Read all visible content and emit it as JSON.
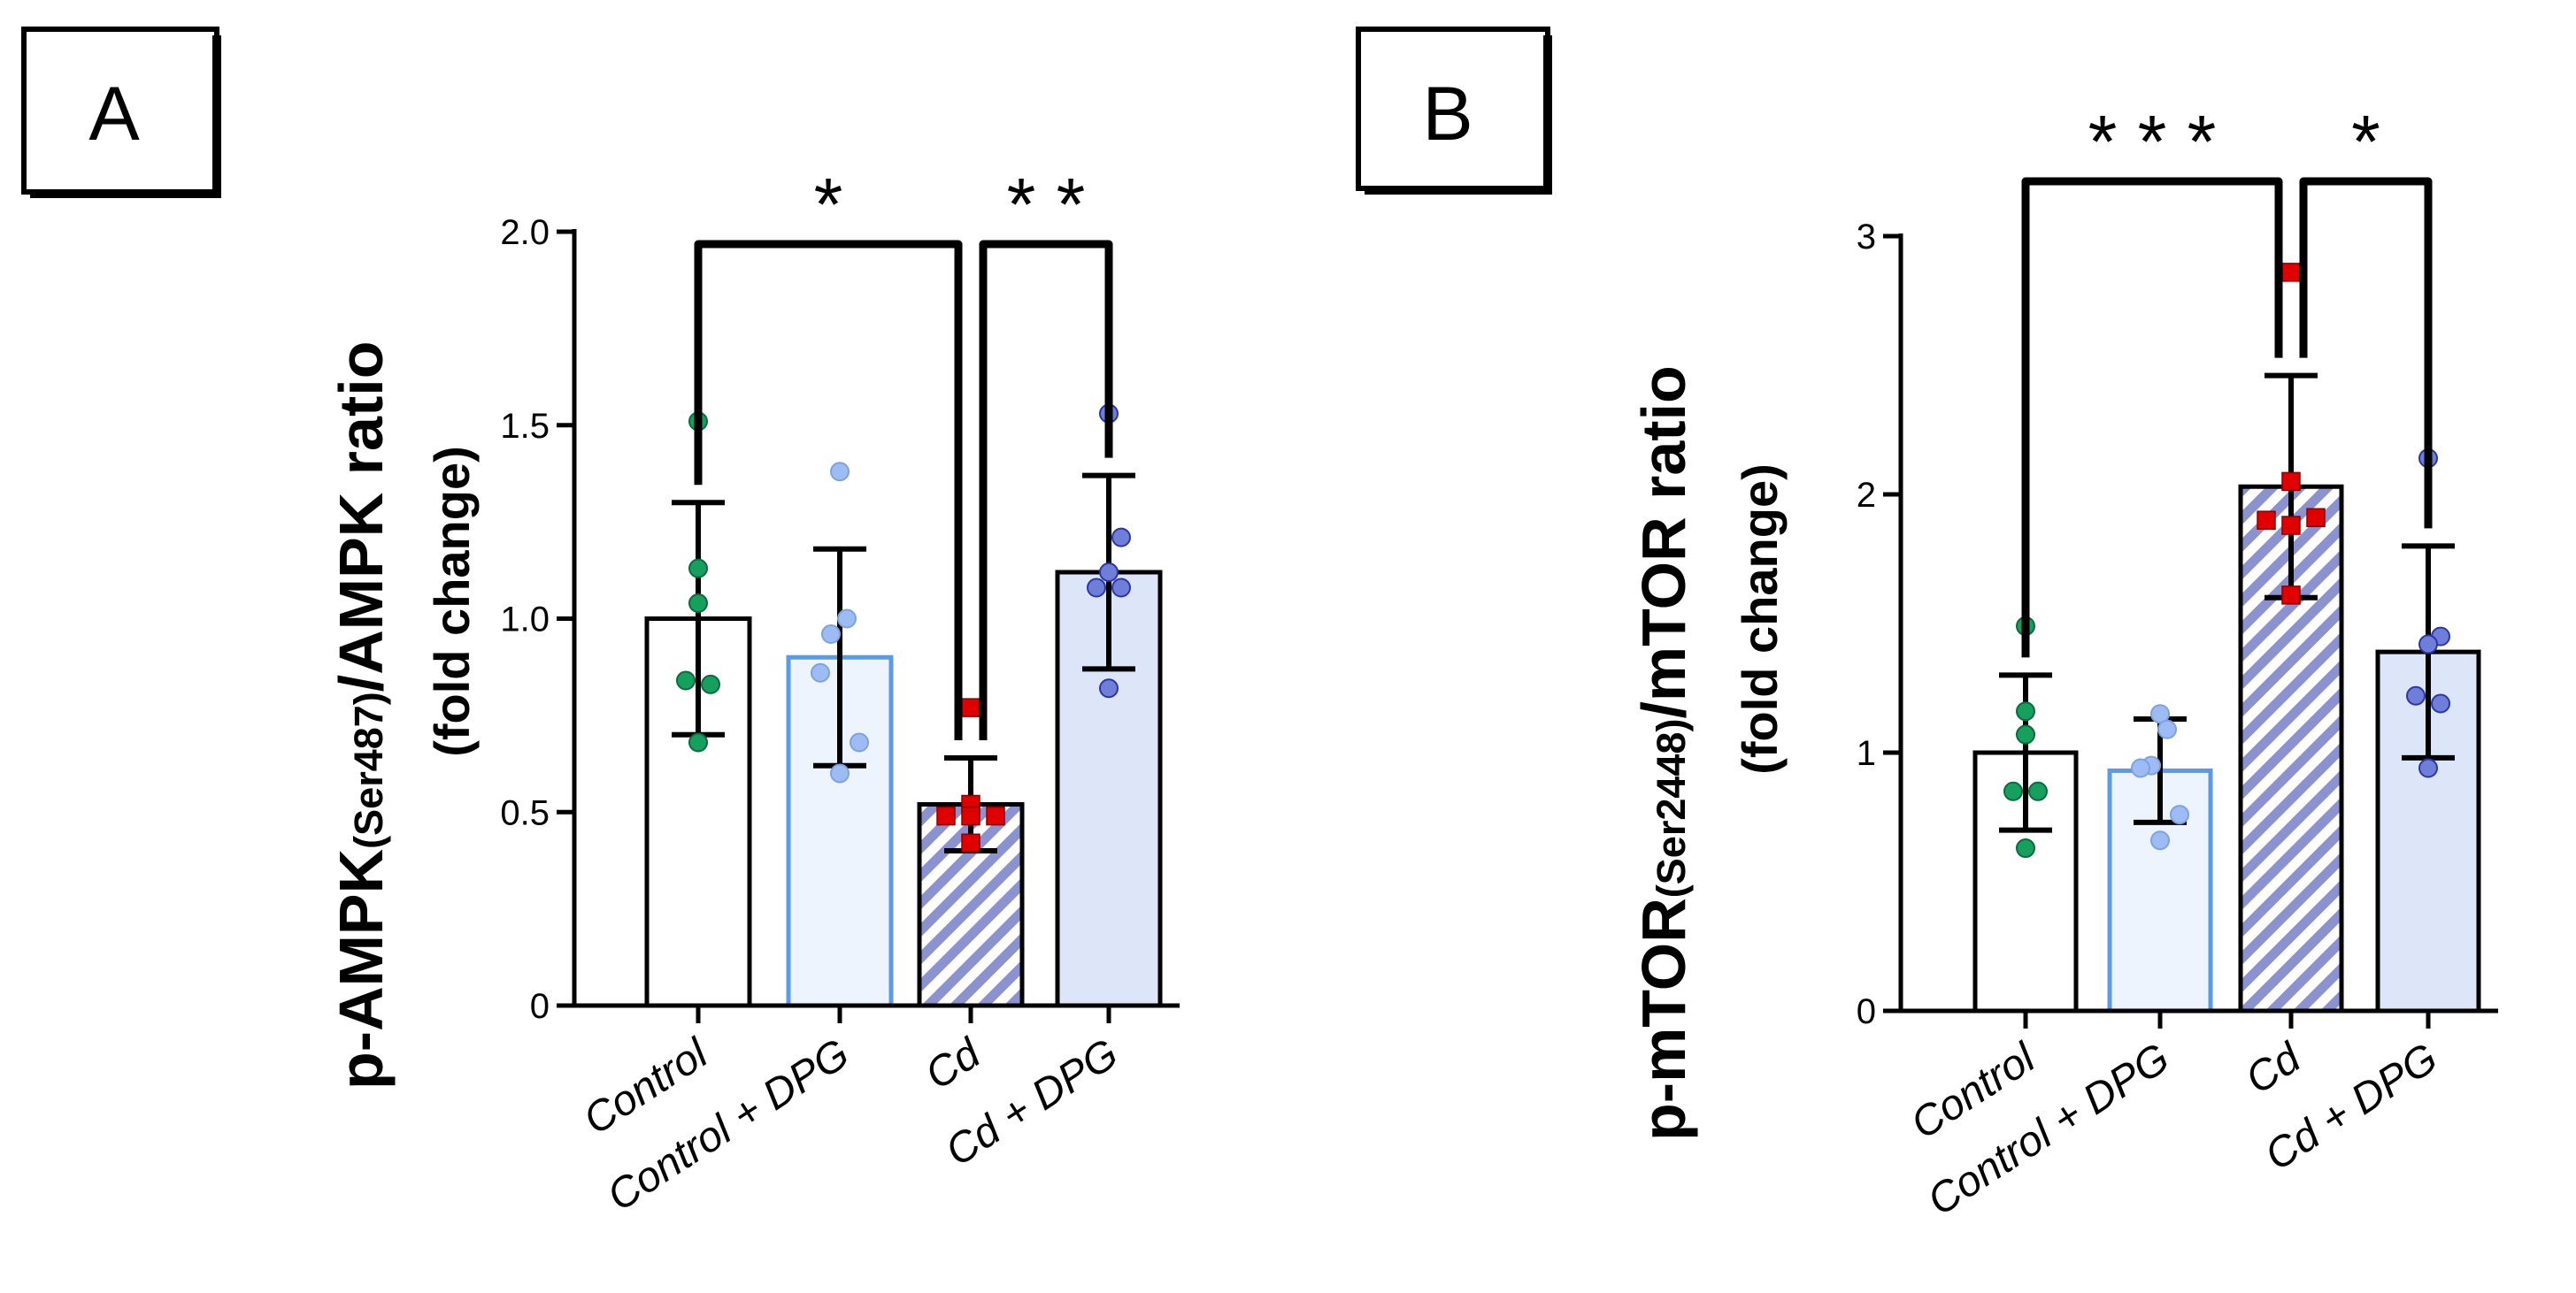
{
  "colors": {
    "green": "#16a05d",
    "light_blue_dot": "#9dbcf4",
    "light_blue_fill": "#eef4fd",
    "light_blue_edge": "#5a9be6",
    "red": "#e10000",
    "dark_blue_dot": "#6f7fd9",
    "hatch": "#8a92cf",
    "cd_dpg_fill": "#dde5f8",
    "black": "#000000"
  },
  "chart_data": [
    {
      "type": "bar",
      "panel": "A",
      "title": "",
      "ylabel": {
        "main": "p-AMPK",
        "sub": "(Ser487)",
        "rest": "/AMPK ratio",
        "line2": "(fold change)"
      },
      "categories": [
        "Control",
        "Control + DPG",
        "Cd",
        "Cd + DPG"
      ],
      "ylim": [
        0,
        2.0
      ],
      "yticks": [
        0,
        0.5,
        1.0,
        1.5,
        2.0
      ],
      "yticklabels": [
        "0",
        "0.5",
        "1.0",
        "1.5",
        "2.0"
      ],
      "values": [
        1.0,
        0.9,
        0.52,
        1.12
      ],
      "error": [
        0.3,
        0.28,
        0.12,
        0.25
      ],
      "points": [
        [
          1.51,
          1.13,
          1.04,
          0.84,
          0.83,
          0.68
        ],
        [
          1.38,
          1.0,
          0.96,
          0.86,
          0.68,
          0.6
        ],
        [
          0.77,
          0.52,
          0.49,
          0.49,
          0.49,
          0.42
        ],
        [
          1.53,
          1.21,
          1.12,
          1.08,
          1.08,
          0.82
        ]
      ],
      "significance": [
        {
          "from": 0,
          "to": 2,
          "label": "*"
        },
        {
          "from": 2,
          "to": 3,
          "label": "* *"
        }
      ]
    },
    {
      "type": "bar",
      "panel": "B",
      "title": "",
      "ylabel": {
        "main": "p-mTOR",
        "sub": "(Ser2448)",
        "rest": "/mTOR ratio",
        "line2": "(fold change)"
      },
      "categories": [
        "Control",
        "Control + DPG",
        "Cd",
        "Cd + DPG"
      ],
      "ylim": [
        0,
        3
      ],
      "yticks": [
        0,
        1,
        2,
        3
      ],
      "yticklabels": [
        "0",
        "1",
        "2",
        "3"
      ],
      "values": [
        1.0,
        0.93,
        2.03,
        1.39
      ],
      "error": [
        0.3,
        0.2,
        0.43,
        0.41
      ],
      "points": [
        [
          1.49,
          1.16,
          1.07,
          0.85,
          0.85,
          0.63
        ],
        [
          1.15,
          1.09,
          0.95,
          0.94,
          0.76,
          0.66
        ],
        [
          2.86,
          2.05,
          1.91,
          1.9,
          1.88,
          1.61
        ],
        [
          2.14,
          1.45,
          1.42,
          1.22,
          1.19,
          0.94
        ]
      ],
      "significance": [
        {
          "from": 0,
          "to": 2,
          "label": "* * *"
        },
        {
          "from": 2,
          "to": 3,
          "label": "*"
        }
      ]
    }
  ]
}
